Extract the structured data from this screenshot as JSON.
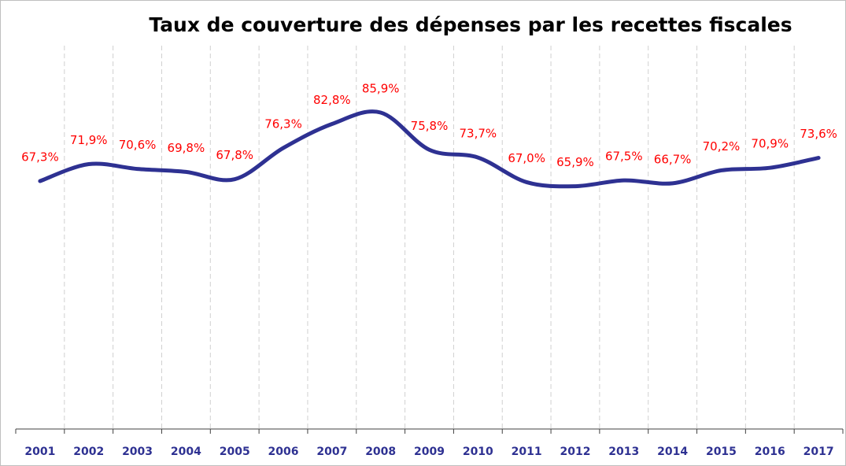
{
  "chart_data": {
    "type": "line",
    "title": "Taux de couverture des dépenses par les recettes fiscales",
    "categories": [
      "2001",
      "2002",
      "2003",
      "2004",
      "2005",
      "2006",
      "2007",
      "2008",
      "2009",
      "2010",
      "2011",
      "2012",
      "2013",
      "2014",
      "2015",
      "2016",
      "2017"
    ],
    "series": [
      {
        "color": "#2e3192",
        "values": [
          67.3,
          71.9,
          70.6,
          69.8,
          67.8,
          76.3,
          82.8,
          85.9,
          75.8,
          73.7,
          67.0,
          65.9,
          67.5,
          66.7,
          70.2,
          70.9,
          73.6
        ],
        "value_labels": [
          "67,3%",
          "71,9%",
          "70,6%",
          "69,8%",
          "67,8%",
          "76,3%",
          "82,8%",
          "85,9%",
          "75,8%",
          "73,7%",
          "67,0%",
          "65,9%",
          "67,5%",
          "66,7%",
          "70,2%",
          "70,9%",
          "73,6%"
        ]
      }
    ],
    "label_color": "#ff0000",
    "ylim": [
      0,
      100
    ]
  }
}
